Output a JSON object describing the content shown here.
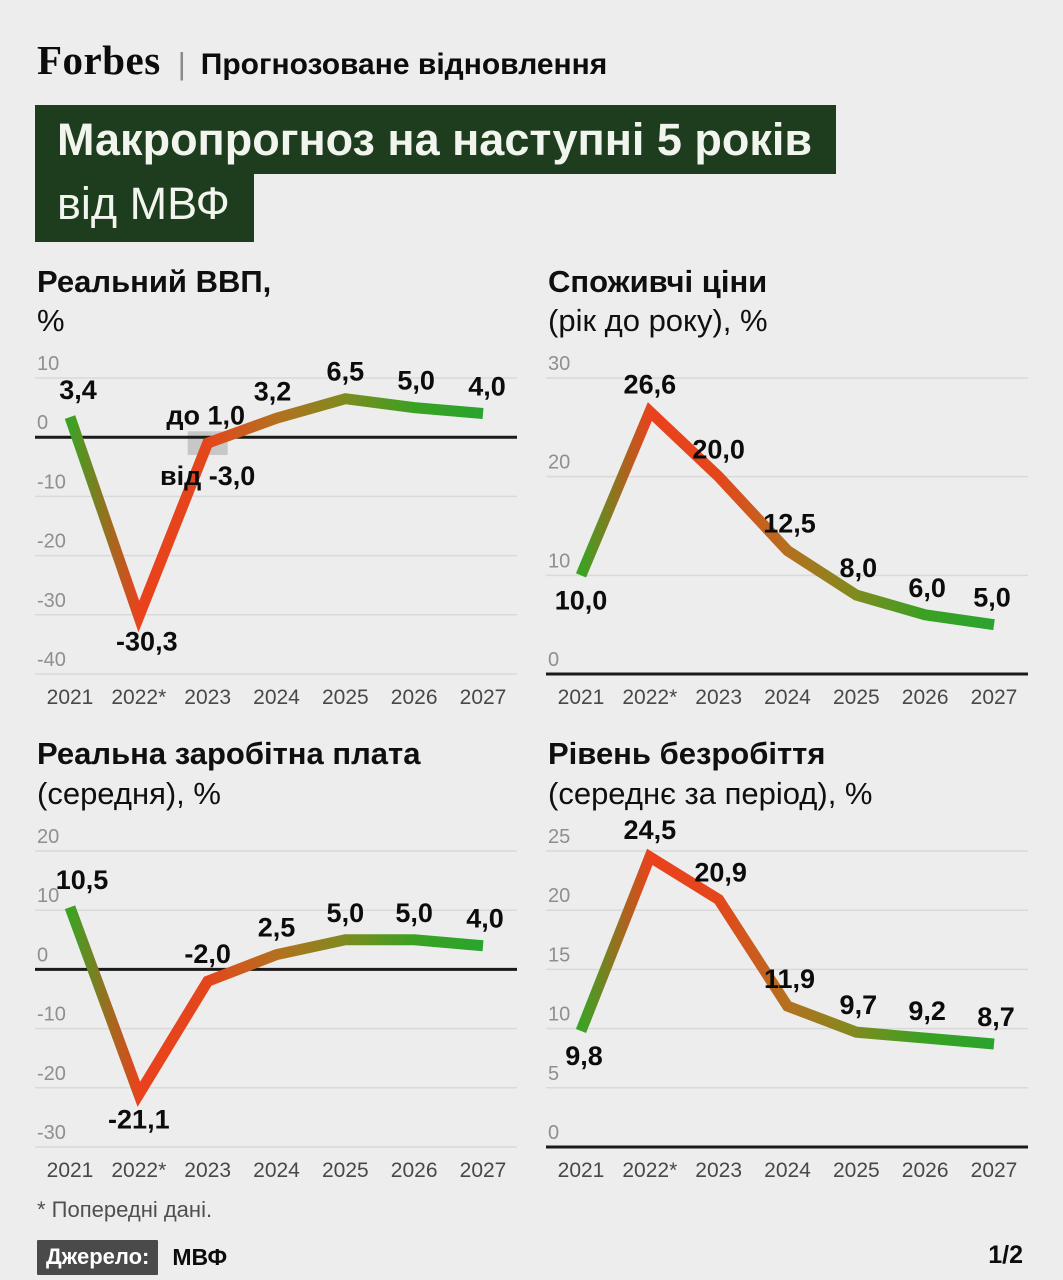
{
  "header": {
    "brand": "Forbes",
    "divider": "|",
    "rubric": "Прогнозоване відновлення"
  },
  "title": {
    "line1": "Макропрогноз на наступні 5 років",
    "line2": "від МВФ"
  },
  "palette": {
    "page_background": "#ededed",
    "title_background": "#1e3c1e",
    "title_color": "#f2f5ee",
    "grid_color": "#d9d9d9",
    "axis_color": "#1a1a1a",
    "tick_label_color": "#8f8f8f",
    "year_label_color": "#484848",
    "data_label_color": "#0c0c0c",
    "range_box_color": "#c7c7c7",
    "badge_background": "#4a4a4a",
    "badge_color": "#ffffff",
    "line_gradient": [
      {
        "offset": 0,
        "color": "#3aa324"
      },
      {
        "offset": 0.167,
        "color": "#e9421c"
      },
      {
        "offset": 0.333,
        "color": "#e4461c"
      },
      {
        "offset": 0.5,
        "color": "#b4701e"
      },
      {
        "offset": 0.667,
        "color": "#7e8b1f"
      },
      {
        "offset": 0.833,
        "color": "#3aa122"
      },
      {
        "offset": 1,
        "color": "#2aa42e"
      }
    ]
  },
  "chart_data": [
    {
      "type": "line",
      "name": "real-gdp",
      "title_bold": "Реальний ВВП,",
      "title_light": "%",
      "categories": [
        "2021",
        "2022*",
        "2023",
        "2024",
        "2025",
        "2026",
        "2027"
      ],
      "values": [
        3.4,
        -30.3,
        null,
        3.2,
        6.5,
        5.0,
        4.0
      ],
      "labels": [
        "3,4",
        "-30,3",
        null,
        "3,2",
        "6,5",
        "5,0",
        "4,0"
      ],
      "label_pos": [
        "above",
        "below",
        "none",
        "above",
        "above",
        "above",
        "above"
      ],
      "label_dx": [
        8,
        8,
        0,
        -4,
        0,
        2,
        4
      ],
      "y_ticks": [
        10,
        0,
        -10,
        -20,
        -30,
        -40
      ],
      "range": {
        "index": 2,
        "from": -3.0,
        "to": 1.0,
        "label_to": "до 1,0",
        "label_from": "від -3,0"
      }
    },
    {
      "type": "line",
      "name": "consumer-prices",
      "title_bold": "Споживчі ціни",
      "title_light": "(рік до року), %",
      "categories": [
        "2021",
        "2022*",
        "2023",
        "2024",
        "2025",
        "2026",
        "2027"
      ],
      "values": [
        10.0,
        26.6,
        20.0,
        12.5,
        8.0,
        6.0,
        5.0
      ],
      "labels": [
        "10,0",
        "26,6",
        "20,0",
        "12,5",
        "8,0",
        "6,0",
        "5,0"
      ],
      "label_pos": [
        "below",
        "above",
        "above",
        "above",
        "above",
        "above",
        "above"
      ],
      "label_dx": [
        0,
        0,
        0,
        2,
        2,
        2,
        -2
      ],
      "y_ticks": [
        30,
        20,
        10,
        0
      ]
    },
    {
      "type": "line",
      "name": "real-wages",
      "title_bold": "Реальна заробітна плата",
      "title_light": "(середня), %",
      "categories": [
        "2021",
        "2022*",
        "2023",
        "2024",
        "2025",
        "2026",
        "2027"
      ],
      "values": [
        10.5,
        -21.1,
        -2.0,
        2.5,
        5.0,
        5.0,
        4.0
      ],
      "labels": [
        "10,5",
        "-21,1",
        "-2,0",
        "2,5",
        "5,0",
        "5,0",
        "4,0"
      ],
      "label_pos": [
        "above",
        "below",
        "above",
        "above",
        "above",
        "above",
        "above"
      ],
      "label_dx": [
        12,
        0,
        0,
        0,
        0,
        0,
        2
      ],
      "y_ticks": [
        20,
        10,
        0,
        -10,
        -20,
        -30
      ]
    },
    {
      "type": "line",
      "name": "unemployment",
      "title_bold": "Рівень безробіття",
      "title_light": "(середнє за період), %",
      "categories": [
        "2021",
        "2022*",
        "2023",
        "2024",
        "2025",
        "2026",
        "2027"
      ],
      "values": [
        9.8,
        24.5,
        20.9,
        11.9,
        9.7,
        9.2,
        8.7
      ],
      "labels": [
        "9,8",
        "24,5",
        "20,9",
        "11,9",
        "9,7",
        "9,2",
        "8,7"
      ],
      "label_pos": [
        "below",
        "above",
        "above",
        "above",
        "above",
        "above",
        "above"
      ],
      "label_dx": [
        3,
        0,
        2,
        2,
        2,
        2,
        2
      ],
      "y_ticks": [
        25,
        20,
        15,
        10,
        5,
        0
      ]
    }
  ],
  "footer": {
    "footnote": "* Попередні дані.",
    "source_label": "Джерело:",
    "source_value": "МВФ",
    "page_indicator": "1/2"
  }
}
